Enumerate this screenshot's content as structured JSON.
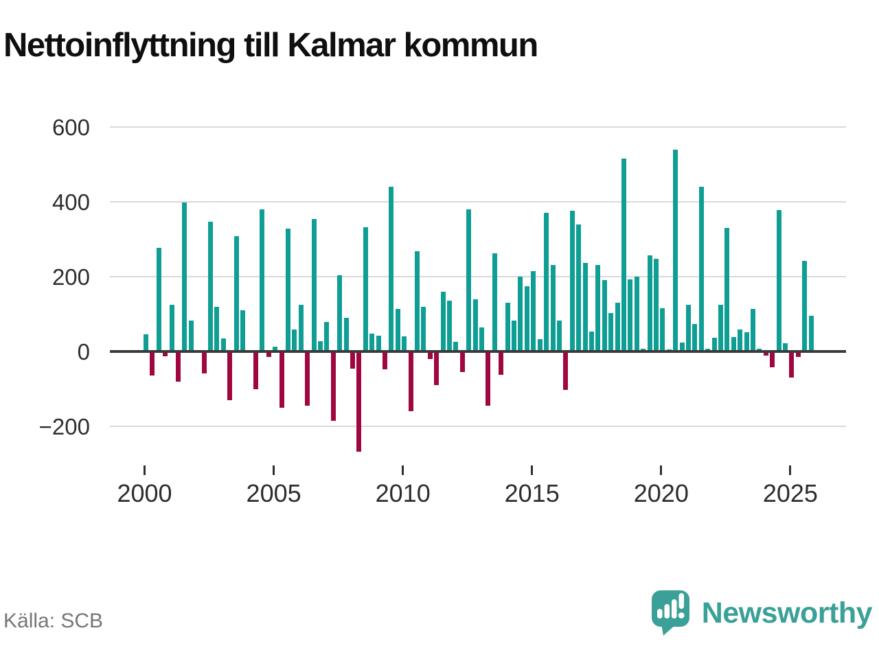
{
  "title": "Nettoinflyttning till Kalmar kommun",
  "source": "Källa: SCB",
  "logo": {
    "text": "Newsworthy"
  },
  "colors": {
    "positive": "#0E9E94",
    "negative": "#A00741",
    "grid": "#D9D9D9",
    "zero_axis": "#3A3A3A",
    "tick": "#2F2F2F",
    "axis_label": "#2D2D2D",
    "title": "#0F0F0F",
    "source": "#767676",
    "logo": "#3BA097"
  },
  "chart_data": {
    "type": "bar",
    "title": "Nettoinflyttning till Kalmar kommun",
    "frequency": "quarterly",
    "x_start": {
      "year": 2000,
      "quarter": 1
    },
    "values": [
      45,
      -65,
      277,
      -13,
      124,
      -80,
      398,
      82,
      0,
      -58,
      347,
      120,
      34,
      -130,
      308,
      110,
      0,
      -100,
      380,
      -15,
      12,
      -150,
      329,
      59,
      124,
      -145,
      355,
      28,
      79,
      -185,
      203,
      89,
      -45,
      -268,
      332,
      47,
      43,
      -47,
      440,
      113,
      41,
      -160,
      268,
      120,
      -20,
      -89,
      160,
      135,
      26,
      -55,
      380,
      139,
      64,
      -145,
      263,
      -63,
      130,
      82,
      200,
      175,
      215,
      33,
      370,
      232,
      83,
      -102,
      377,
      340,
      237,
      54,
      232,
      191,
      103,
      131,
      516,
      193,
      200,
      8,
      257,
      248,
      115,
      6,
      540,
      23,
      124,
      74,
      440,
      8,
      36,
      125,
      330,
      39,
      59,
      51,
      114,
      8,
      -10,
      -42,
      378,
      22,
      -70,
      -14,
      243,
      96
    ],
    "x_tick_labels": [
      "2000",
      "2005",
      "2010",
      "2015",
      "2020",
      "2025"
    ],
    "x_tick_years": [
      2000,
      2005,
      2010,
      2015,
      2020,
      2025
    ],
    "y_tick_labels": [
      "600",
      "400",
      "200",
      "0",
      "−200"
    ],
    "y_ticks": [
      600,
      400,
      200,
      0,
      -200
    ],
    "ylim": [
      -280,
      620
    ],
    "grid": "horizontal",
    "legend": "none",
    "positive_color": "#0E9E94",
    "negative_color": "#A00741"
  }
}
